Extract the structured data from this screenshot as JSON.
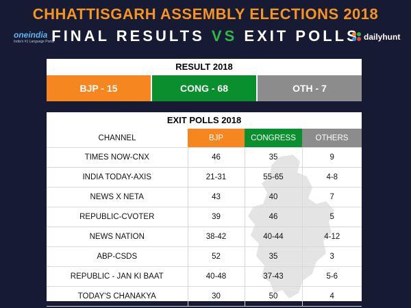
{
  "header": {
    "title": "CHHATTISGARH ASSEMBLY ELECTIONS 2018",
    "subtitle_left": "FINAL RESULTS",
    "subtitle_vs": "VS",
    "subtitle_right": "EXIT POLLS"
  },
  "logos": {
    "left_brand": "oneindia",
    "left_tagline": "India's #1 Language Portal",
    "right_brand": "dailyhunt"
  },
  "result": {
    "title": "RESULT 2018",
    "parties": [
      {
        "label": "BJP - 15",
        "color": "#f6861f"
      },
      {
        "label": "CONG - 68",
        "color": "#0a8f2e"
      },
      {
        "label": "OTH - 7",
        "color": "#8c8c8c"
      }
    ]
  },
  "exit_polls": {
    "title": "EXIT POLLS 2018",
    "columns": [
      {
        "label": "CHANNEL",
        "color": "#ffffff"
      },
      {
        "label": "BJP",
        "color": "#f6861f"
      },
      {
        "label": "CONGRESS",
        "color": "#0a8f2e"
      },
      {
        "label": "OTHERS",
        "color": "#8c8c8c"
      }
    ],
    "rows": [
      {
        "channel": "TIMES NOW-CNX",
        "bjp": "46",
        "congress": "35",
        "others": "9"
      },
      {
        "channel": "INDIA TODAY-AXIS",
        "bjp": "21-31",
        "congress": "55-65",
        "others": "4-8"
      },
      {
        "channel": "NEWS X NETA",
        "bjp": "43",
        "congress": "40",
        "others": "7"
      },
      {
        "channel": "REPUBLIC-CVOTER",
        "bjp": "39",
        "congress": "46",
        "others": "5"
      },
      {
        "channel": "NEWS NATION",
        "bjp": "38-42",
        "congress": "40-44",
        "others": "4-12"
      },
      {
        "channel": "ABP-CSDS",
        "bjp": "52",
        "congress": "35",
        "others": "3"
      },
      {
        "channel": "REPUBLIC - JAN KI BAAT",
        "bjp": "40-48",
        "congress": "37-43",
        "others": "5-6"
      },
      {
        "channel": "TODAY'S CHANAKYA",
        "bjp": "30",
        "congress": "50",
        "others": "4"
      }
    ]
  },
  "colors": {
    "background": "#171a33",
    "title_orange": "#f7941d",
    "vs_green": "#2fb84a"
  }
}
